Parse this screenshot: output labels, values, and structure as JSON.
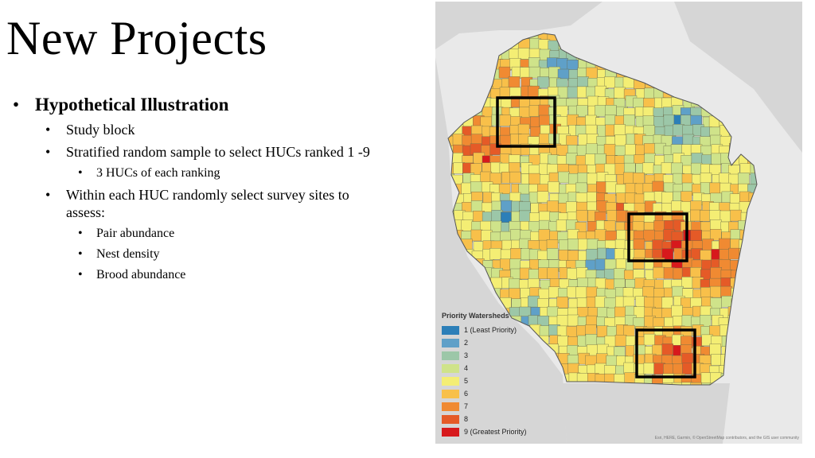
{
  "slide": {
    "title": "New Projects",
    "bullets": [
      {
        "text": "Hypothetical Illustration",
        "children": [
          {
            "text": "Study block"
          },
          {
            "text": "Stratified random sample to select HUCs ranked 1 -9",
            "children": [
              {
                "text": "3 HUCs of each ranking"
              }
            ]
          },
          {
            "text": "Within each HUC randomly select survey sites to assess:",
            "children": [
              {
                "text": "Pair abundance"
              },
              {
                "text": "Nest density"
              },
              {
                "text": "Brood abundance"
              }
            ]
          }
        ]
      }
    ]
  },
  "map": {
    "subject": "Wisconsin priority watersheds",
    "legend": {
      "title": "Priority Watersheds",
      "items": [
        {
          "label": "1 (Least Priority)",
          "color": "#2c7fb8"
        },
        {
          "label": "2",
          "color": "#5fa0c8"
        },
        {
          "label": "3",
          "color": "#9cc7a8"
        },
        {
          "label": "4",
          "color": "#cfe38a"
        },
        {
          "label": "5",
          "color": "#f4ee74"
        },
        {
          "label": "6",
          "color": "#f8c04a"
        },
        {
          "label": "7",
          "color": "#f08a32"
        },
        {
          "label": "8",
          "color": "#e55a27"
        },
        {
          "label": "9 (Greatest Priority)",
          "color": "#d7191c"
        }
      ]
    },
    "attribution": "Esri, HERE, Garmin, © OpenStreetMap contributors, and the GIS user community",
    "colors": {
      "water": "#e9e9e9",
      "land_outside": "#d6d6d6",
      "study_block_outline": "#000000"
    }
  }
}
